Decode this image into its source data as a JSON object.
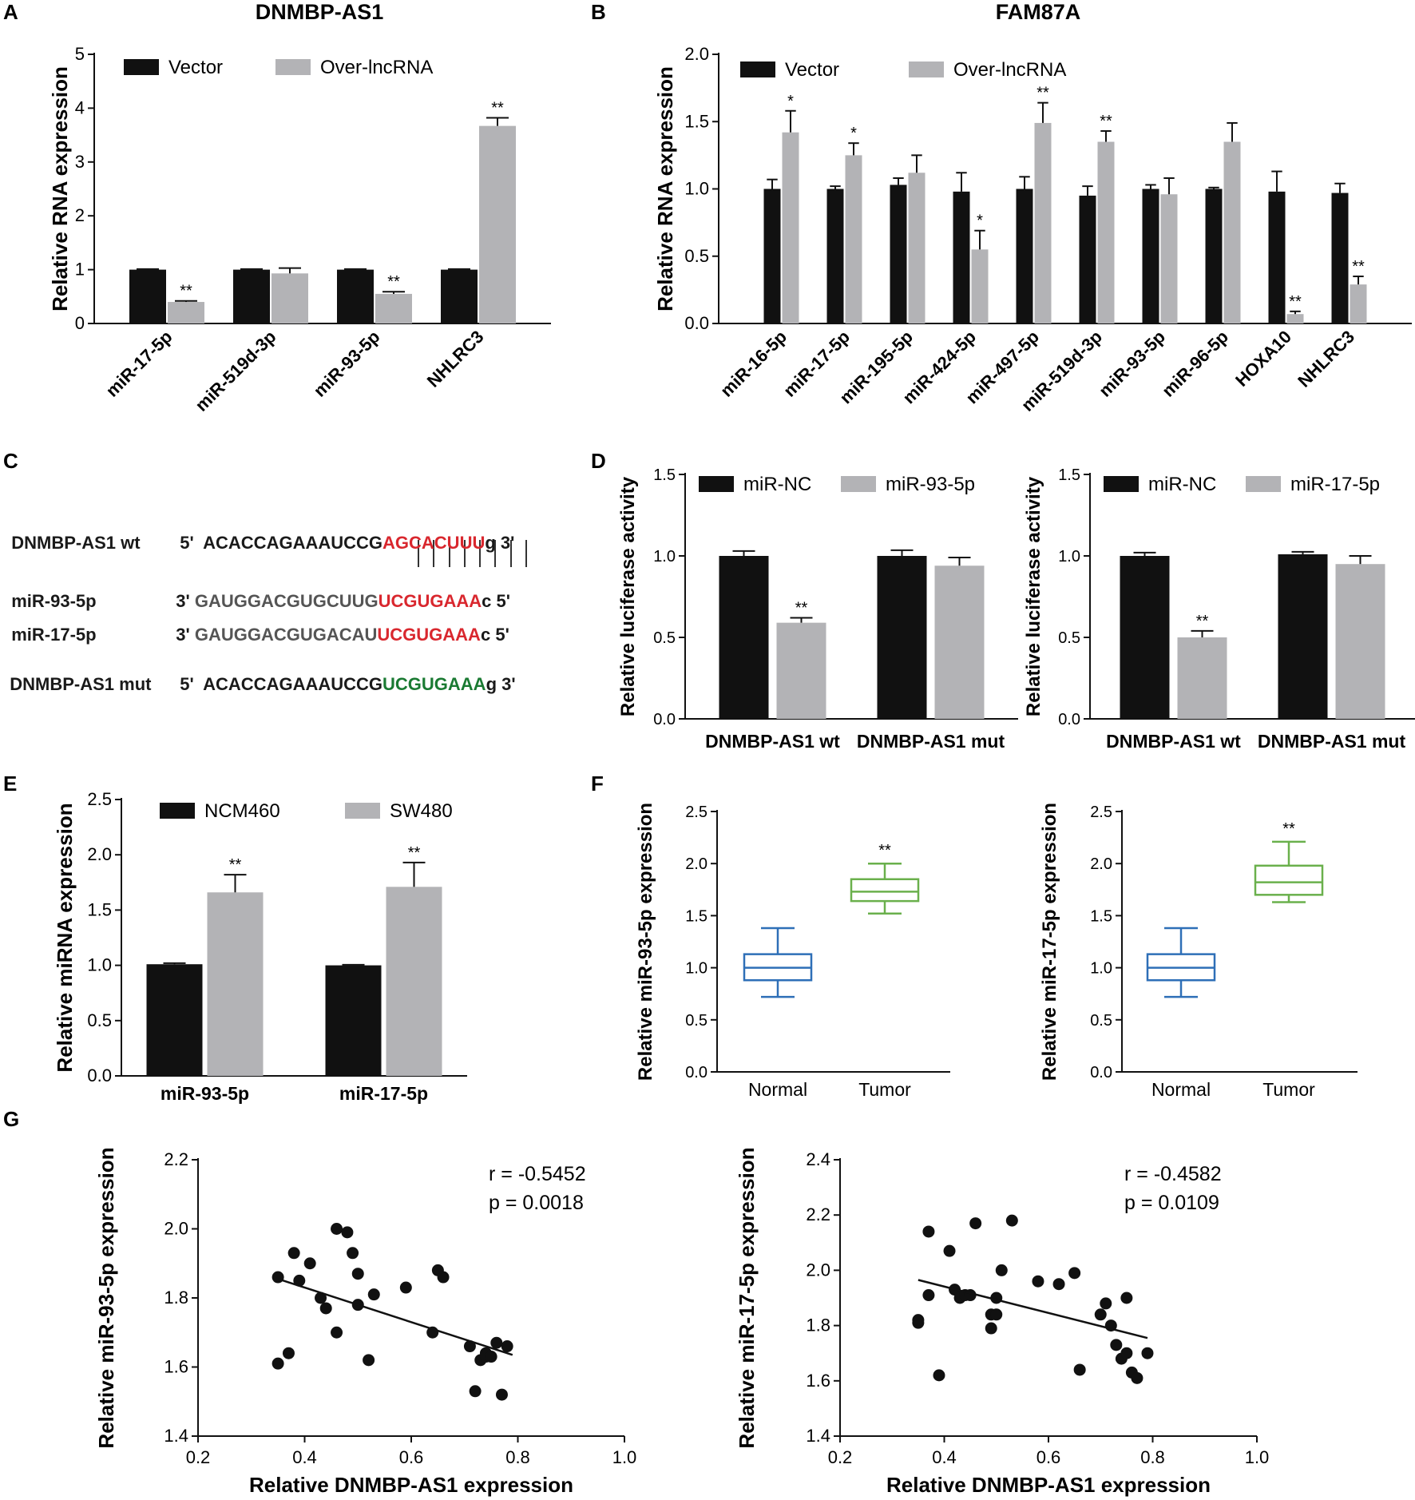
{
  "panel_letters": [
    "A",
    "B",
    "C",
    "D",
    "E",
    "F",
    "G"
  ],
  "sequences": {
    "wt": {
      "label": "DNMBP-AS1 wt",
      "prime5": "5'",
      "seq_plain": "ACACCAGAAAUCCG",
      "seq_site": "AGCACUUU",
      "tail": "g",
      "prime3": "3'"
    },
    "mir93": {
      "label": "miR-93-5p",
      "prime3": "3'",
      "seq_plain": "GAUGGACGUGCUUG",
      "seq_site": "UCGUGAAA",
      "tail": "c",
      "prime5": "5'"
    },
    "mir17": {
      "label": "miR-17-5p",
      "prime3": "3'",
      "seq_plain": "GAUGGACGUGACAU",
      "seq_site": "UCGUGAAA",
      "tail": "c",
      "prime5": "5'"
    },
    "mut": {
      "label": "DNMBP-AS1 mut",
      "prime5": "5'",
      "seq_plain": "ACACCAGAAAUCCG",
      "seq_site": "UCGUGAAA",
      "tail": "g",
      "prime3": "3'"
    }
  },
  "colors": {
    "black_bar": "#111111",
    "grey_bar": "#b3b3b6",
    "blue_box": "#2e6fb7",
    "green_box": "#6ab04c",
    "red_seq": "#d9272e",
    "green_seq": "#1a7a32"
  },
  "chart_data": [
    {
      "id": "A",
      "type": "bar",
      "title": "DNMBP-AS1",
      "ylabel": "Relative RNA expression",
      "ylim": [
        0,
        5
      ],
      "yticks": [
        0,
        1,
        2,
        3,
        4,
        5
      ],
      "categories": [
        "miR-17-5p",
        "miR-519d-3p",
        "miR-93-5p",
        "NHLRC3"
      ],
      "series": [
        {
          "name": "Vector",
          "values": [
            1.0,
            1.0,
            1.0,
            1.0
          ],
          "errors": [
            0.01,
            0.01,
            0.01,
            0.01
          ]
        },
        {
          "name": "Over-lncRNA",
          "values": [
            0.4,
            0.93,
            0.55,
            3.67
          ],
          "errors": [
            0.02,
            0.1,
            0.04,
            0.15
          ]
        }
      ],
      "sig": [
        "**",
        "",
        "**",
        "**"
      ]
    },
    {
      "id": "B",
      "type": "bar",
      "title": "FAM87A",
      "ylabel": "Relative RNA expression",
      "ylim": [
        0,
        2.0
      ],
      "yticks": [
        0.0,
        0.5,
        1.0,
        1.5,
        2.0
      ],
      "categories": [
        "miR-16-5p",
        "miR-17-5p",
        "miR-195-5p",
        "miR-424-5p",
        "miR-497-5p",
        "miR-519d-3p",
        "miR-93-5p",
        "miR-96-5p",
        "HOXA10",
        "NHLRC3"
      ],
      "series": [
        {
          "name": "Vector",
          "values": [
            1.0,
            1.0,
            1.03,
            0.98,
            1.0,
            0.95,
            1.0,
            1.0,
            0.98,
            0.97
          ],
          "errors": [
            0.07,
            0.02,
            0.05,
            0.14,
            0.09,
            0.07,
            0.03,
            0.01,
            0.15,
            0.07
          ]
        },
        {
          "name": "Over-lncRNA",
          "values": [
            1.42,
            1.25,
            1.12,
            0.55,
            1.49,
            1.35,
            0.96,
            1.35,
            0.07,
            0.29
          ],
          "errors": [
            0.16,
            0.09,
            0.13,
            0.14,
            0.15,
            0.08,
            0.12,
            0.14,
            0.02,
            0.06
          ]
        }
      ],
      "sig": [
        "*",
        "*",
        "",
        "*",
        "**",
        "**",
        "",
        "",
        "**",
        "**"
      ]
    },
    {
      "id": "D1",
      "type": "bar",
      "ylabel": "Relative luciferase activity",
      "ylim": [
        0,
        1.5
      ],
      "yticks": [
        0.0,
        0.5,
        1.0,
        1.5
      ],
      "categories": [
        "DNMBP-AS1 wt",
        "DNMBP-AS1 mut"
      ],
      "series": [
        {
          "name": "miR-NC",
          "values": [
            1.0,
            1.0
          ],
          "errors": [
            0.03,
            0.035
          ]
        },
        {
          "name": "miR-93-5p",
          "values": [
            0.59,
            0.94
          ],
          "errors": [
            0.03,
            0.05
          ]
        }
      ],
      "sig": [
        "**",
        ""
      ]
    },
    {
      "id": "D2",
      "type": "bar",
      "ylabel": "Relative luciferase activity",
      "ylim": [
        0,
        1.5
      ],
      "yticks": [
        0.0,
        0.5,
        1.0,
        1.5
      ],
      "categories": [
        "DNMBP-AS1 wt",
        "DNMBP-AS1 mut"
      ],
      "series": [
        {
          "name": "miR-NC",
          "values": [
            1.0,
            1.01
          ],
          "errors": [
            0.02,
            0.015
          ]
        },
        {
          "name": "miR-17-5p",
          "values": [
            0.5,
            0.95
          ],
          "errors": [
            0.04,
            0.05
          ]
        }
      ],
      "sig": [
        "**",
        ""
      ]
    },
    {
      "id": "E",
      "type": "bar",
      "ylabel": "Relative miRNA expression",
      "ylim": [
        0,
        2.5
      ],
      "yticks": [
        0.0,
        0.5,
        1.0,
        1.5,
        2.0,
        2.5
      ],
      "categories": [
        "miR-93-5p",
        "miR-17-5p"
      ],
      "series": [
        {
          "name": "NCM460",
          "values": [
            1.01,
            1.0
          ],
          "errors": [
            0.01,
            0.005
          ]
        },
        {
          "name": "SW480",
          "values": [
            1.66,
            1.71
          ],
          "errors": [
            0.16,
            0.22
          ]
        }
      ],
      "sig": [
        "**",
        "**"
      ]
    },
    {
      "id": "F1",
      "type": "box",
      "ylabel": "Relative miR-93-5p expression",
      "ylim": [
        0,
        2.5
      ],
      "yticks": [
        0.0,
        0.5,
        1.0,
        1.5,
        2.0,
        2.5
      ],
      "categories": [
        "Normal",
        "Tumor"
      ],
      "boxes": [
        {
          "min": 0.72,
          "q1": 0.88,
          "median": 1.0,
          "q3": 1.13,
          "max": 1.38
        },
        {
          "min": 1.52,
          "q1": 1.64,
          "median": 1.73,
          "q3": 1.85,
          "max": 2.0
        }
      ],
      "sig": [
        "",
        "**"
      ]
    },
    {
      "id": "F2",
      "type": "box",
      "ylabel": "Relative miR-17-5p expression",
      "ylim": [
        0,
        2.5
      ],
      "yticks": [
        0.0,
        0.5,
        1.0,
        1.5,
        2.0,
        2.5
      ],
      "categories": [
        "Normal",
        "Tumor"
      ],
      "boxes": [
        {
          "min": 0.72,
          "q1": 0.88,
          "median": 1.0,
          "q3": 1.13,
          "max": 1.38
        },
        {
          "min": 1.63,
          "q1": 1.7,
          "median": 1.82,
          "q3": 1.98,
          "max": 2.21
        }
      ],
      "sig": [
        "",
        "**"
      ]
    },
    {
      "id": "G1",
      "type": "scatter",
      "xlabel": "Relative DNMBP-AS1 expression",
      "ylabel": "Relative miR-93-5p expression",
      "xlim": [
        0.2,
        1.0
      ],
      "ylim": [
        1.4,
        2.2
      ],
      "xticks": [
        0.2,
        0.4,
        0.6,
        0.8,
        1.0
      ],
      "yticks": [
        1.4,
        1.6,
        1.8,
        2.0,
        2.2
      ],
      "r_text": "r = -0.5452",
      "p_text": "p = 0.0018",
      "fit": {
        "x": [
          0.35,
          0.79
        ],
        "y": [
          1.855,
          1.635
        ]
      },
      "points": [
        [
          0.35,
          1.86
        ],
        [
          0.35,
          1.61
        ],
        [
          0.37,
          1.64
        ],
        [
          0.38,
          1.93
        ],
        [
          0.39,
          1.85
        ],
        [
          0.41,
          1.9
        ],
        [
          0.43,
          1.8
        ],
        [
          0.44,
          1.77
        ],
        [
          0.46,
          1.7
        ],
        [
          0.46,
          2.0
        ],
        [
          0.48,
          1.99
        ],
        [
          0.49,
          1.93
        ],
        [
          0.5,
          1.78
        ],
        [
          0.5,
          1.87
        ],
        [
          0.52,
          1.62
        ],
        [
          0.53,
          1.81
        ],
        [
          0.59,
          1.83
        ],
        [
          0.64,
          1.7
        ],
        [
          0.65,
          1.88
        ],
        [
          0.66,
          1.86
        ],
        [
          0.71,
          1.66
        ],
        [
          0.72,
          1.53
        ],
        [
          0.73,
          1.62
        ],
        [
          0.74,
          1.64
        ],
        [
          0.74,
          1.63
        ],
        [
          0.75,
          1.63
        ],
        [
          0.76,
          1.67
        ],
        [
          0.77,
          1.52
        ],
        [
          0.78,
          1.66
        ]
      ]
    },
    {
      "id": "G2",
      "type": "scatter",
      "xlabel": "Relative DNMBP-AS1 expression",
      "ylabel": "Relative miR-17-5p expression",
      "xlim": [
        0.2,
        1.0
      ],
      "ylim": [
        1.4,
        2.4
      ],
      "xticks": [
        0.2,
        0.4,
        0.6,
        0.8,
        1.0
      ],
      "yticks": [
        1.4,
        1.6,
        1.8,
        2.0,
        2.2,
        2.4
      ],
      "r_text": "r = -0.4582",
      "p_text": "p = 0.0109",
      "fit": {
        "x": [
          0.35,
          0.79
        ],
        "y": [
          1.965,
          1.755
        ]
      },
      "points": [
        [
          0.35,
          1.81
        ],
        [
          0.35,
          1.82
        ],
        [
          0.37,
          1.91
        ],
        [
          0.37,
          2.14
        ],
        [
          0.39,
          1.62
        ],
        [
          0.41,
          2.07
        ],
        [
          0.42,
          1.93
        ],
        [
          0.43,
          1.9
        ],
        [
          0.44,
          1.91
        ],
        [
          0.45,
          1.91
        ],
        [
          0.46,
          2.17
        ],
        [
          0.49,
          1.79
        ],
        [
          0.49,
          1.84
        ],
        [
          0.5,
          1.9
        ],
        [
          0.5,
          1.84
        ],
        [
          0.51,
          2.0
        ],
        [
          0.53,
          2.18
        ],
        [
          0.58,
          1.96
        ],
        [
          0.62,
          1.95
        ],
        [
          0.65,
          1.99
        ],
        [
          0.66,
          1.64
        ],
        [
          0.7,
          1.84
        ],
        [
          0.71,
          1.88
        ],
        [
          0.72,
          1.8
        ],
        [
          0.73,
          1.73
        ],
        [
          0.74,
          1.68
        ],
        [
          0.75,
          1.9
        ],
        [
          0.75,
          1.7
        ],
        [
          0.76,
          1.63
        ],
        [
          0.77,
          1.61
        ],
        [
          0.79,
          1.7
        ]
      ]
    }
  ]
}
